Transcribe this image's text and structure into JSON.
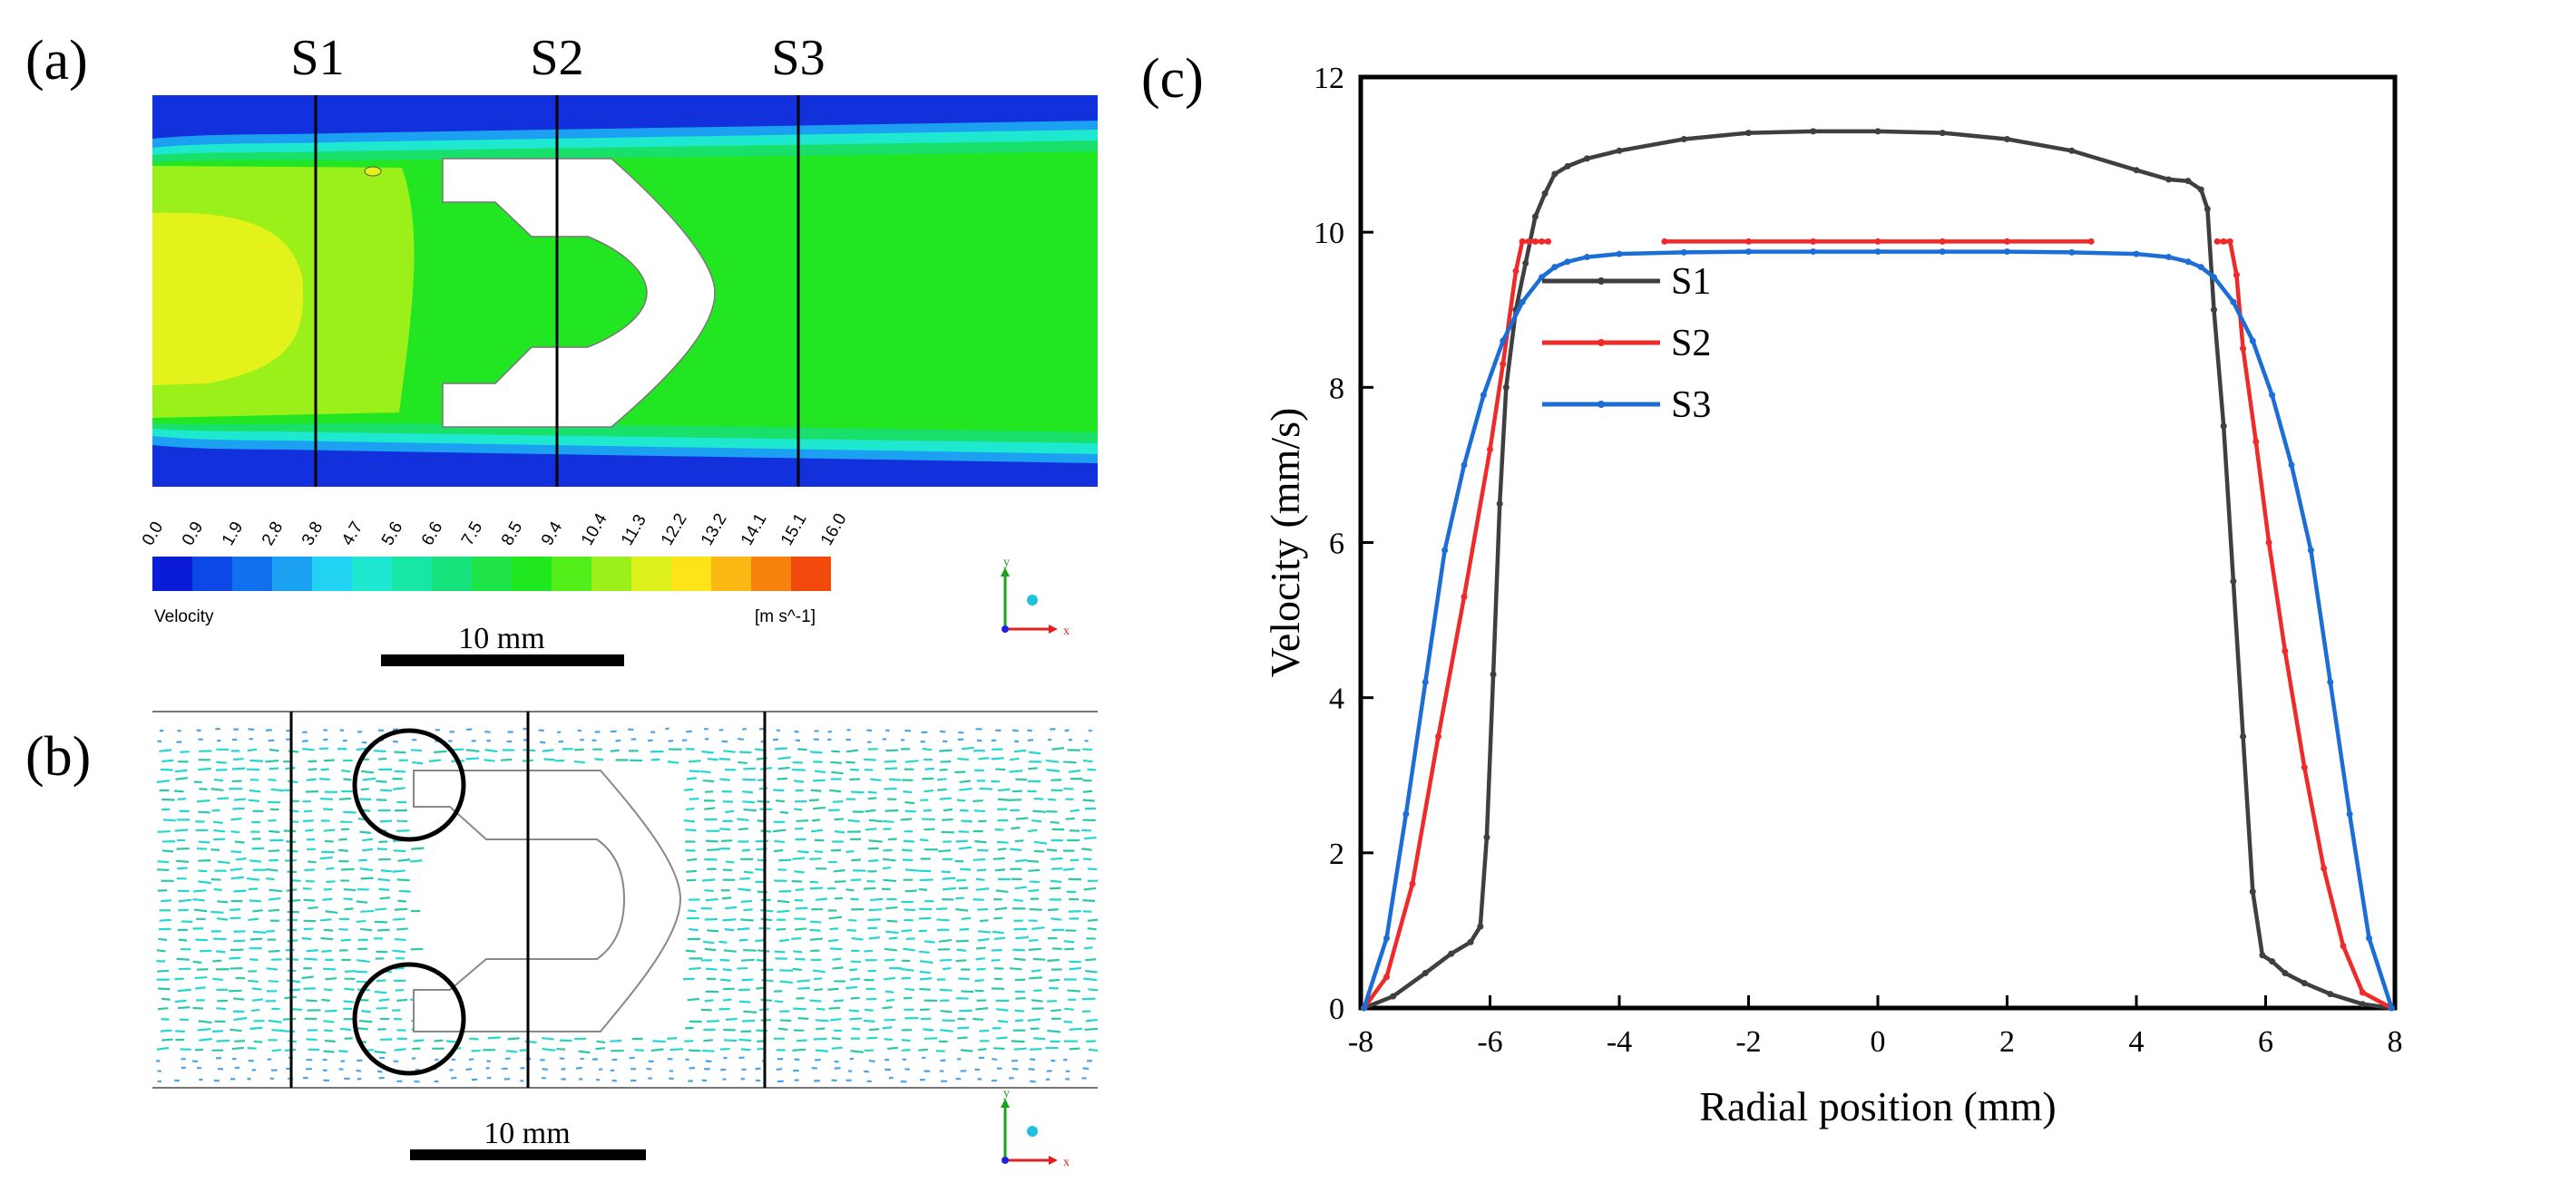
{
  "panels": {
    "a": {
      "label": "(a)",
      "sections": [
        "S1",
        "S2",
        "S3"
      ],
      "colorbar": {
        "ticks": [
          "0.0",
          "0.9",
          "1.9",
          "2.8",
          "3.8",
          "4.7",
          "5.6",
          "6.6",
          "7.5",
          "8.5",
          "9.4",
          "10.4",
          "11.3",
          "12.2",
          "13.2",
          "14.1",
          "15.1",
          "16.0"
        ],
        "colors": [
          "#0a1cd6",
          "#0b48e6",
          "#1070ee",
          "#1ca0f2",
          "#22d2f2",
          "#1ee8cf",
          "#18e6a4",
          "#16e27c",
          "#1ee448",
          "#20e81e",
          "#54ee1a",
          "#9cf01a",
          "#dcf21a",
          "#fde418",
          "#fcb812",
          "#f7820e",
          "#f24a0c"
        ],
        "title": "Velocity",
        "unit": "[m s^-1]"
      },
      "scalebar": "10 mm"
    },
    "b": {
      "label": "(b)",
      "scalebar": "10 mm"
    },
    "c": {
      "label": "(c)"
    }
  },
  "axis_labels": {
    "x": "x",
    "y": "y"
  },
  "chart_data": {
    "type": "line",
    "title": "",
    "xlabel": "Radial position (mm)",
    "ylabel": "Velocity (mm/s)",
    "xlim": [
      -8,
      8
    ],
    "ylim": [
      0,
      12
    ],
    "xticks": [
      -8,
      -6,
      -4,
      -2,
      0,
      2,
      4,
      6,
      8
    ],
    "yticks": [
      0,
      2,
      4,
      6,
      8,
      10,
      12
    ],
    "legend_position": "center-left",
    "series": [
      {
        "name": "S1",
        "color": "#3f3f3f",
        "x": [
          -7.95,
          -7.5,
          -7.0,
          -6.6,
          -6.3,
          -6.15,
          -6.05,
          -5.95,
          -5.85,
          -5.75,
          -5.6,
          -5.45,
          -5.3,
          -5.15,
          -5.0,
          -4.8,
          -4.5,
          -4.0,
          -3.0,
          -2.0,
          -1.0,
          0.0,
          1.0,
          2.0,
          3.0,
          4.0,
          4.5,
          4.8,
          5.0,
          5.1,
          5.2,
          5.35,
          5.5,
          5.65,
          5.8,
          5.95,
          6.1,
          6.3,
          6.6,
          7.0,
          7.5,
          7.95
        ],
        "y": [
          0.0,
          0.15,
          0.45,
          0.7,
          0.85,
          1.05,
          2.2,
          4.3,
          6.5,
          8.0,
          9.0,
          9.6,
          10.2,
          10.5,
          10.75,
          10.85,
          10.95,
          11.05,
          11.2,
          11.28,
          11.3,
          11.3,
          11.28,
          11.2,
          11.05,
          10.8,
          10.68,
          10.66,
          10.55,
          10.3,
          9.0,
          7.5,
          5.5,
          3.5,
          1.5,
          0.68,
          0.6,
          0.45,
          0.32,
          0.18,
          0.05,
          0.0
        ]
      },
      {
        "name": "S2",
        "color": "#ee2a2a",
        "segments": [
          {
            "x": [
              -7.95,
              -7.6,
              -7.2,
              -6.8,
              -6.4,
              -6.0,
              -5.8,
              -5.6,
              -5.5,
              -5.4,
              -5.3,
              -5.2,
              -5.1
            ],
            "y": [
              0.0,
              0.4,
              1.6,
              3.5,
              5.3,
              7.2,
              8.3,
              9.5,
              9.88,
              9.88,
              9.88,
              9.88,
              9.88
            ]
          },
          {
            "x": [
              -3.3,
              -2.0,
              -1.0,
              0.0,
              1.0,
              2.0,
              3.3
            ],
            "y": [
              9.88,
              9.88,
              9.88,
              9.88,
              9.88,
              9.88,
              9.88
            ]
          },
          {
            "x": [
              5.25,
              5.35,
              5.45,
              5.55,
              5.65,
              5.85,
              6.05,
              6.3,
              6.6,
              6.9,
              7.2,
              7.5,
              7.95
            ],
            "y": [
              9.88,
              9.88,
              9.88,
              9.45,
              8.5,
              7.3,
              6.0,
              4.6,
              3.1,
              1.8,
              0.8,
              0.2,
              0.0
            ]
          }
        ]
      },
      {
        "name": "S3",
        "color": "#1c6ed6",
        "x": [
          -7.95,
          -7.6,
          -7.3,
          -7.0,
          -6.7,
          -6.4,
          -6.1,
          -5.8,
          -5.5,
          -5.2,
          -5.0,
          -4.8,
          -4.5,
          -4.0,
          -3.0,
          -2.0,
          -1.0,
          0.0,
          1.0,
          2.0,
          3.0,
          4.0,
          4.5,
          4.8,
          5.0,
          5.2,
          5.5,
          5.8,
          6.1,
          6.4,
          6.7,
          7.0,
          7.3,
          7.6,
          7.95
        ],
        "y": [
          0.0,
          0.9,
          2.5,
          4.2,
          5.9,
          7.0,
          7.9,
          8.6,
          9.1,
          9.42,
          9.55,
          9.62,
          9.68,
          9.72,
          9.74,
          9.75,
          9.75,
          9.75,
          9.75,
          9.75,
          9.74,
          9.72,
          9.68,
          9.62,
          9.55,
          9.42,
          9.1,
          8.6,
          7.9,
          7.0,
          5.9,
          4.2,
          2.5,
          0.9,
          0.0
        ]
      }
    ]
  }
}
